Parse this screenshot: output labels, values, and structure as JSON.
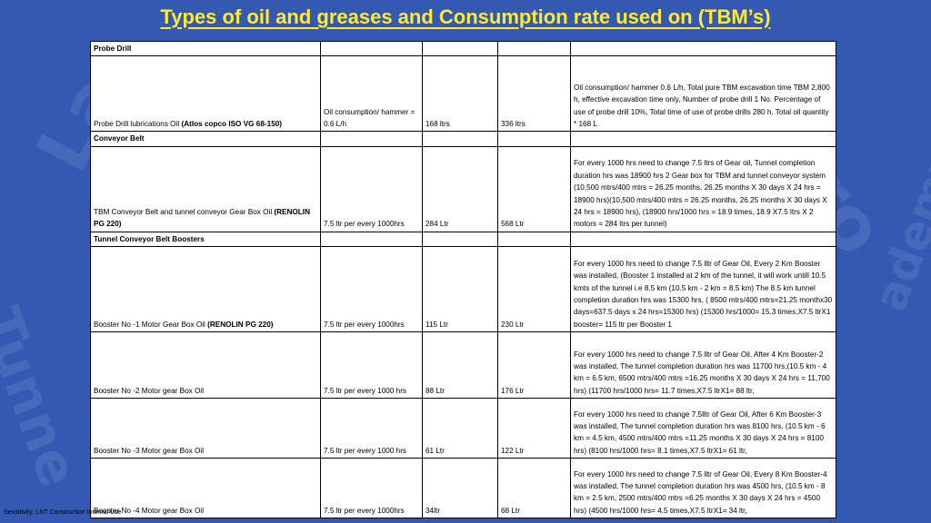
{
  "title": "Types of oil and greases and Consumption rate used on (TBM’s)",
  "footer": "Sensitivity: LNT Construction Internal Use",
  "sections": {
    "probe": {
      "header": "Probe Drill",
      "rows": [
        {
          "name": "Probe Drill lubrications Oil ",
          "name_bold": "(Atlos copco ISO VG 68-150)",
          "rate": "Oil consumption/ hammer = 0.6 L/h",
          "qty": "168 ltrs",
          "total": "336 ltrs",
          "remarks": "Oil consumption/ hammer 0.6 L/h, Total pure TBM excavation time TBM 2,800 h, effective excavation time only, Number of probe drill 1 No. Percentage of use of probe drill 10%, Total time of use of probe drills 280 h. Total oil quantity * 168 L"
        }
      ]
    },
    "conveyor": {
      "header": "Conveyor Belt",
      "rows": [
        {
          "name": "TBM Conveyor Belt and tunnel conveyor Gear Box Oil ",
          "name_bold": "(RENOLIN PG 220)",
          "rate": "7.5 ltr per every 1000hrs",
          "qty": "284 Ltr",
          "total": "568 Ltr",
          "remarks": "For every 1000 hrs need to change 7.5 ltrs of Gear oil, Tunnel completion duration hrs was 18900 hrs 2 Gear box for TBM and tunnel conveyor system (10,500 mtrs/400 mtrs = 26.25 months, 26.25 months X 30 days X 24 hrs = 18900 hrs)(10,500 mtrs/400 mtrs = 26.25 months, 26.25 months X 30 days X 24 hrs = 18900 hrs), (18900 hrs/1000 hrs = 18.9 times, 18.9 X7.5 ltrs X 2 motors = 284 ltrs per tunnel)"
        }
      ]
    },
    "boosters": {
      "header": "Tunnel Conveyor Belt Boosters",
      "rows": [
        {
          "name": "Booster No -1 Motor Gear Box Oil  ",
          "name_bold": "(RENOLIN PG 220)",
          "rate": "7.5 ltr per every 1000hrs",
          "qty": "115 Ltr",
          "total": "230 Ltr",
          "remarks": "For every 1000 hrs need to change 7.5 lltr of Gear Oil, Every 2 Km Booster was installed, (Booster 1 installed at 2 km of the tunnel, it will work untill 10.5 kmts of the tunnel i.e 8.5 km (10.5 km - 2 km = 8.5 km) The 8.5 km tunnel completion duration hrs was 15300 hrs, ( 8500 mtrs/400 mtrs=21.25 monthx30 days=637.5 days x 24 hrs=15300 hrs) (15300 hrs/1000= 15.3 times,X7.5 ltrX1 booster= 115 ltr per Booster 1"
        },
        {
          "name": "Booster No -2 Motor gear Box Oil",
          "name_bold": "",
          "rate": "7.5 ltr per every 1000 hrs",
          "qty": "88 Ltr",
          "total": "176 Ltr",
          "remarks": "For every 1000 hrs need to change 7.5 lltr of Gear Oil, After 4 Km Booster-2 was installed, The tunnel completion duration hrs was 11700 hrs,(10.5 km - 4 km = 6.5 km, 6500 mtrs/400 mtrs =16.25 months X 30 days X 24 hrs = 11,700 hrs) (11700 hrs/1000 hrs= 11.7 times,X7.5 ltrX1= 88 ltr,"
        },
        {
          "name": "Booster No -3 Motor gear Box Oil",
          "name_bold": "",
          "rate": "7.5 ltr per every 1000 hrs",
          "qty": "61 Ltr",
          "total": "122 Ltr",
          "remarks": "For every 1000 hrs need to change 7.5lltr of Gear Oil, After 6 Km Booster-3 was installed, The tunnel completion duration hrs was 8100 hrs, (10.5 km - 6 km = 4.5 km, 4500 mtrs/400 mtrs =11.25 months X 30 days X 24 hrs = 8100 hrs) (8100 hrs/1000 hrs= 8.1 times,X7.5 ltrX1= 61 ltr,"
        },
        {
          "name": "Booster No -4 Motor gear Box Oil",
          "name_bold": "",
          "rate": "7.5 ltr per every 1000hrs",
          "qty": "34ltr",
          "total": "68 Ltr",
          "remarks": "For every 1000 hrs need to change 7.5 lltr of Gear Oil, Every 8 Km Booster-4 was installed, The tunnel completion duration hrs was 4500 hrs, (10.5 km - 8 km = 2.5 km, 2500 mtrs/400 mtrs =6.25 months X 30 days X 24 hrs = 4500 hrs) (4500 hrs/1000 hrs= 4.5 times,X7.5 ltrX1= 34 ltr,"
        }
      ]
    }
  }
}
